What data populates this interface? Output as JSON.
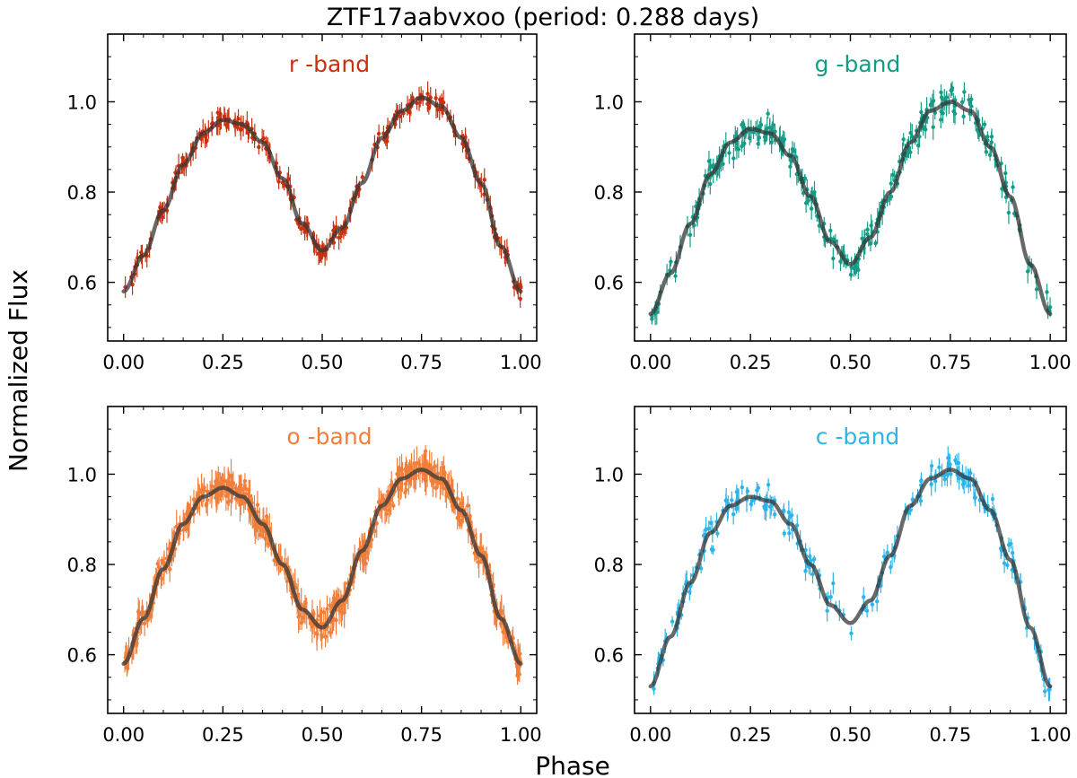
{
  "figure": {
    "title": "ZTF17aabvxoo (period: 0.288 days)",
    "xlabel": "Phase",
    "ylabel": "Normalized Flux"
  },
  "chart_data": [
    {
      "type": "scatter",
      "band_label": "r -band",
      "color": "#c9300f",
      "x_ticks": [
        "0.00",
        "0.25",
        "0.50",
        "0.75",
        "1.00"
      ],
      "y_ticks": [
        "0.6",
        "0.8",
        "1.0"
      ],
      "xlim": [
        -0.04,
        1.04
      ],
      "ylim": [
        0.47,
        1.15
      ],
      "model": {
        "phase": [
          0.0,
          0.05,
          0.1,
          0.15,
          0.2,
          0.25,
          0.3,
          0.35,
          0.4,
          0.45,
          0.5,
          0.55,
          0.6,
          0.65,
          0.7,
          0.75,
          0.8,
          0.85,
          0.9,
          0.95,
          1.0
        ],
        "flux": [
          0.58,
          0.66,
          0.76,
          0.86,
          0.93,
          0.96,
          0.95,
          0.91,
          0.83,
          0.73,
          0.67,
          0.72,
          0.82,
          0.92,
          0.98,
          1.01,
          0.99,
          0.92,
          0.82,
          0.68,
          0.58
        ]
      },
      "scatter": 0.018,
      "n_points": 300
    },
    {
      "type": "scatter",
      "band_label": "g -band",
      "color": "#159c87",
      "x_ticks": [
        "0.00",
        "0.25",
        "0.50",
        "0.75",
        "1.00"
      ],
      "y_ticks": [
        "0.6",
        "0.8",
        "1.0"
      ],
      "xlim": [
        -0.04,
        1.04
      ],
      "ylim": [
        0.47,
        1.15
      ],
      "model": {
        "phase": [
          0.0,
          0.05,
          0.1,
          0.15,
          0.2,
          0.25,
          0.3,
          0.35,
          0.4,
          0.45,
          0.5,
          0.55,
          0.6,
          0.65,
          0.7,
          0.75,
          0.8,
          0.85,
          0.9,
          0.95,
          1.0
        ],
        "flux": [
          0.53,
          0.62,
          0.73,
          0.84,
          0.91,
          0.94,
          0.93,
          0.88,
          0.79,
          0.69,
          0.64,
          0.7,
          0.8,
          0.91,
          0.98,
          1.0,
          0.98,
          0.9,
          0.79,
          0.64,
          0.53
        ]
      },
      "scatter": 0.03,
      "n_points": 320
    },
    {
      "type": "scatter",
      "band_label": "o -band",
      "color": "#f07f3c",
      "x_ticks": [
        "0.00",
        "0.25",
        "0.50",
        "0.75",
        "1.00"
      ],
      "y_ticks": [
        "0.6",
        "0.8",
        "1.0"
      ],
      "xlim": [
        -0.04,
        1.04
      ],
      "ylim": [
        0.47,
        1.15
      ],
      "model": {
        "phase": [
          0.0,
          0.05,
          0.1,
          0.15,
          0.2,
          0.25,
          0.3,
          0.35,
          0.4,
          0.45,
          0.5,
          0.55,
          0.6,
          0.65,
          0.7,
          0.75,
          0.8,
          0.85,
          0.9,
          0.95,
          1.0
        ],
        "flux": [
          0.58,
          0.68,
          0.79,
          0.89,
          0.95,
          0.97,
          0.95,
          0.89,
          0.8,
          0.7,
          0.66,
          0.72,
          0.83,
          0.93,
          0.99,
          1.01,
          0.99,
          0.92,
          0.82,
          0.68,
          0.58
        ]
      },
      "scatter": 0.028,
      "n_points": 650
    },
    {
      "type": "scatter",
      "band_label": "c -band",
      "color": "#2db4e8",
      "x_ticks": [
        "0.00",
        "0.25",
        "0.50",
        "0.75",
        "1.00"
      ],
      "y_ticks": [
        "0.6",
        "0.8",
        "1.0"
      ],
      "xlim": [
        -0.04,
        1.04
      ],
      "ylim": [
        0.47,
        1.15
      ],
      "model": {
        "phase": [
          0.0,
          0.05,
          0.1,
          0.15,
          0.2,
          0.25,
          0.3,
          0.35,
          0.4,
          0.45,
          0.5,
          0.55,
          0.6,
          0.65,
          0.7,
          0.75,
          0.8,
          0.85,
          0.9,
          0.95,
          1.0
        ],
        "flux": [
          0.53,
          0.64,
          0.76,
          0.87,
          0.93,
          0.95,
          0.94,
          0.89,
          0.8,
          0.71,
          0.67,
          0.72,
          0.82,
          0.93,
          0.99,
          1.01,
          0.99,
          0.92,
          0.81,
          0.66,
          0.53
        ]
      },
      "scatter": 0.03,
      "n_points": 230
    }
  ]
}
